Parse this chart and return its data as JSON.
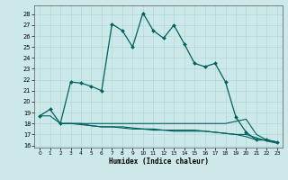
{
  "xlabel": "Humidex (Indice chaleur)",
  "bg_color": "#cce8e8",
  "line_color": "#006060",
  "xlim": [
    -0.5,
    23.5
  ],
  "ylim": [
    15.8,
    28.8
  ],
  "yticks": [
    16,
    17,
    18,
    19,
    20,
    21,
    22,
    23,
    24,
    25,
    26,
    27,
    28
  ],
  "xticks": [
    0,
    1,
    2,
    3,
    4,
    5,
    6,
    7,
    8,
    9,
    10,
    11,
    12,
    13,
    14,
    15,
    16,
    17,
    18,
    19,
    20,
    21,
    22,
    23
  ],
  "line1_x": [
    0,
    1,
    2,
    3,
    4,
    5,
    6,
    7,
    8,
    9,
    10,
    11,
    12,
    13,
    14,
    15,
    16,
    17,
    18,
    19,
    20,
    21,
    22,
    23
  ],
  "line1_y": [
    18.7,
    19.3,
    18.0,
    21.8,
    21.7,
    21.4,
    21.0,
    27.1,
    26.5,
    25.0,
    28.1,
    26.5,
    25.8,
    27.0,
    25.3,
    23.5,
    23.2,
    23.5,
    21.8,
    18.6,
    17.2,
    16.5,
    16.5,
    16.3
  ],
  "line2_x": [
    0,
    1,
    2,
    3,
    4,
    5,
    6,
    7,
    8,
    9,
    10,
    11,
    12,
    13,
    14,
    15,
    16,
    17,
    18,
    19,
    20,
    21,
    22,
    23
  ],
  "line2_y": [
    18.7,
    18.7,
    18.0,
    18.0,
    18.0,
    17.8,
    17.7,
    17.7,
    17.7,
    17.6,
    17.5,
    17.5,
    17.4,
    17.4,
    17.4,
    17.4,
    17.3,
    17.2,
    17.1,
    17.0,
    16.8,
    16.5,
    16.5,
    16.3
  ],
  "line3_x": [
    2,
    3,
    4,
    5,
    6,
    7,
    8,
    9,
    10,
    11,
    12,
    13,
    14,
    15,
    16,
    17,
    18,
    19,
    20,
    21,
    22,
    23
  ],
  "line3_y": [
    18.0,
    18.0,
    18.0,
    18.0,
    18.0,
    18.0,
    18.0,
    18.0,
    18.0,
    18.0,
    18.0,
    18.0,
    18.0,
    18.0,
    18.0,
    18.0,
    18.0,
    18.2,
    18.4,
    17.0,
    16.5,
    16.3
  ],
  "line4_x": [
    2,
    3,
    4,
    5,
    6,
    7,
    8,
    9,
    10,
    11,
    12,
    13,
    14,
    15,
    16,
    17,
    18,
    19,
    20,
    21,
    22,
    23
  ],
  "line4_y": [
    18.0,
    18.0,
    17.9,
    17.8,
    17.7,
    17.7,
    17.6,
    17.5,
    17.5,
    17.4,
    17.4,
    17.3,
    17.3,
    17.3,
    17.3,
    17.2,
    17.1,
    17.0,
    17.0,
    16.7,
    16.4,
    16.2
  ]
}
